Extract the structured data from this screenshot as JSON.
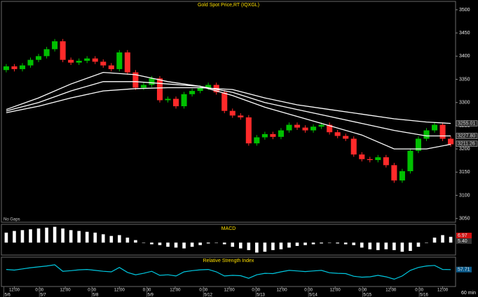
{
  "chart_data": {
    "type": "candlestick",
    "title": "Gold Spot Price,RT (IQXGL)",
    "note": "No Gaps",
    "interval": "60 min",
    "up_color": "#00c000",
    "down_color": "#ff2a2a",
    "xlim": [
      -0.6,
      55.6
    ],
    "ylim": [
      3042,
      3518
    ],
    "yticks": [
      3050,
      3100,
      3150,
      3200,
      3250,
      3300,
      3350,
      3400,
      3450,
      3500
    ],
    "xticks": [
      {
        "value": 1.0,
        "label": "12:00"
      },
      {
        "value": 4.1,
        "label": "0:00"
      },
      {
        "value": 7.3,
        "label": "12:00"
      },
      {
        "value": 10.6,
        "label": "0:00"
      },
      {
        "value": 14.0,
        "label": "12:00"
      },
      {
        "value": 17.4,
        "label": "0:00"
      },
      {
        "value": 20.9,
        "label": "12:00"
      },
      {
        "value": 24.4,
        "label": "0:00"
      },
      {
        "value": 27.6,
        "label": "12:00"
      },
      {
        "value": 30.9,
        "label": "0:00"
      },
      {
        "value": 34.1,
        "label": "12:00"
      },
      {
        "value": 37.4,
        "label": "0:00"
      },
      {
        "value": 40.7,
        "label": "12:00"
      },
      {
        "value": 44.1,
        "label": "0:00"
      },
      {
        "value": 47.6,
        "label": "12:00"
      },
      {
        "value": 51.1,
        "label": "0:00"
      },
      {
        "value": 54.0,
        "label": "12:00"
      }
    ],
    "date_ticks": [
      {
        "value": -0.3,
        "label": "5/6"
      },
      {
        "value": 4.1,
        "label": "5/7"
      },
      {
        "value": 10.6,
        "label": "5/8"
      },
      {
        "value": 17.4,
        "label": "5/9"
      },
      {
        "value": 24.4,
        "label": "5/12"
      },
      {
        "value": 30.9,
        "label": "5/13"
      },
      {
        "value": 37.4,
        "label": "5/14"
      },
      {
        "value": 44.1,
        "label": "5/15"
      },
      {
        "value": 51.1,
        "label": "5/16"
      }
    ],
    "open": [
      3370,
      3378,
      3372,
      3380,
      3392,
      3400,
      3415,
      3432,
      3392,
      3386,
      3390,
      3395,
      3388,
      3380,
      3372,
      3408,
      3365,
      3332,
      3338,
      3352,
      3305,
      3308,
      3292,
      3318,
      3325,
      3332,
      3338,
      3322,
      3282,
      3272,
      3268,
      3212,
      3225,
      3232,
      3226,
      3240,
      3252,
      3246,
      3240,
      3248,
      3252,
      3236,
      3228,
      3222,
      3188,
      3178,
      3176,
      3182,
      3165,
      3132,
      3152,
      3196,
      3222,
      3240,
      3252,
      3222
    ],
    "high": [
      3383,
      3383,
      3385,
      3397,
      3405,
      3420,
      3437,
      3437,
      3397,
      3395,
      3400,
      3400,
      3393,
      3385,
      3413,
      3413,
      3370,
      3343,
      3357,
      3357,
      3313,
      3313,
      3323,
      3330,
      3337,
      3343,
      3343,
      3327,
      3287,
      3277,
      3273,
      3230,
      3237,
      3237,
      3245,
      3257,
      3257,
      3251,
      3253,
      3257,
      3257,
      3241,
      3233,
      3227,
      3193,
      3183,
      3187,
      3187,
      3170,
      3157,
      3201,
      3227,
      3245,
      3257,
      3257,
      3227
    ],
    "low": [
      3365,
      3367,
      3367,
      3375,
      3387,
      3395,
      3410,
      3387,
      3381,
      3381,
      3385,
      3383,
      3375,
      3367,
      3367,
      3360,
      3327,
      3327,
      3333,
      3300,
      3300,
      3287,
      3287,
      3313,
      3320,
      3327,
      3317,
      3277,
      3267,
      3263,
      3207,
      3207,
      3220,
      3221,
      3221,
      3235,
      3241,
      3235,
      3235,
      3243,
      3231,
      3223,
      3217,
      3183,
      3173,
      3171,
      3171,
      3160,
      3127,
      3127,
      3147,
      3191,
      3217,
      3235,
      3217,
      3205
    ],
    "close": [
      3378,
      3372,
      3380,
      3392,
      3400,
      3415,
      3432,
      3392,
      3386,
      3390,
      3395,
      3388,
      3380,
      3372,
      3408,
      3365,
      3332,
      3338,
      3352,
      3305,
      3308,
      3292,
      3318,
      3325,
      3332,
      3338,
      3322,
      3282,
      3272,
      3268,
      3212,
      3225,
      3232,
      3226,
      3240,
      3252,
      3246,
      3240,
      3248,
      3252,
      3236,
      3228,
      3222,
      3188,
      3178,
      3176,
      3182,
      3165,
      3132,
      3152,
      3196,
      3222,
      3240,
      3252,
      3222,
      3210
    ],
    "overlays": {
      "x": [
        0,
        4,
        8,
        12,
        16,
        20,
        24,
        28,
        32,
        36,
        40,
        44,
        48,
        52,
        55
      ],
      "series": [
        {
          "color": "#ffffff",
          "values": [
            3285,
            3310,
            3340,
            3365,
            3360,
            3345,
            3335,
            3315,
            3290,
            3270,
            3250,
            3230,
            3200,
            3200,
            3210
          ]
        },
        {
          "color": "#ffffff",
          "values": [
            3282,
            3300,
            3325,
            3345,
            3345,
            3340,
            3335,
            3322,
            3300,
            3285,
            3270,
            3255,
            3240,
            3228,
            3228
          ]
        },
        {
          "color": "#ffffff",
          "values": [
            3278,
            3292,
            3310,
            3325,
            3330,
            3332,
            3332,
            3328,
            3310,
            3295,
            3285,
            3275,
            3265,
            3258,
            3255
          ]
        }
      ]
    },
    "price_labels": [
      {
        "value": 3255.01,
        "label": "3255.01",
        "color": "#d8d8d8"
      },
      {
        "value": 3227.8,
        "label": "3227.80",
        "color": "#d8d8d8"
      },
      {
        "value": 3211.26,
        "label": "3211.26",
        "color": "#d8d8d8"
      }
    ],
    "macd": {
      "title": "MACD",
      "color": "#ffffff",
      "ylim": [
        -15,
        22
      ],
      "values": [
        12,
        14,
        15,
        16,
        17,
        18,
        19,
        17,
        15,
        14,
        13,
        12,
        10,
        8,
        9,
        6,
        3,
        0,
        -2,
        -3,
        -5,
        -6,
        -7,
        -5,
        -3,
        -1,
        0,
        -2,
        -5,
        -7,
        -9,
        -12,
        -11,
        -9,
        -8,
        -6,
        -4,
        -3,
        -2,
        -1,
        0,
        -1,
        -2,
        -3,
        -6,
        -8,
        -9,
        -8,
        -9,
        -11,
        -10,
        -5,
        0,
        6,
        9,
        7
      ],
      "labels": [
        "6.97",
        "5.40"
      ]
    },
    "rsi": {
      "title": "Relative Strength Index",
      "color": "#00c8e0",
      "ylim": [
        0,
        100
      ],
      "values": [
        58,
        56,
        60,
        64,
        67,
        70,
        74,
        52,
        54,
        57,
        58,
        55,
        52,
        50,
        65,
        48,
        40,
        45,
        52,
        38,
        40,
        36,
        50,
        54,
        57,
        58,
        50,
        36,
        38,
        37,
        28,
        40,
        45,
        44,
        50,
        55,
        53,
        51,
        53,
        55,
        47,
        45,
        44,
        35,
        32,
        33,
        38,
        33,
        25,
        36,
        55,
        65,
        70,
        72,
        58,
        57.71
      ],
      "last_label": "57.71"
    }
  }
}
